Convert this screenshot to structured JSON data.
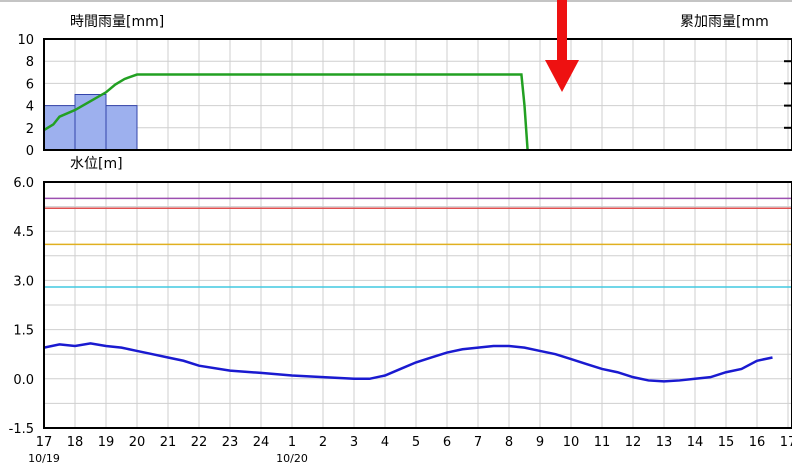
{
  "chart_data": [
    {
      "type": "bar",
      "title_left": "時間雨量[mm]",
      "title_right": "累加雨量[mm",
      "ylim": [
        0,
        10
      ],
      "yticks": [
        0,
        2,
        4,
        6,
        8,
        10
      ],
      "x_start": 17,
      "bars": [
        {
          "x": 17,
          "value": 4
        },
        {
          "x": 18,
          "value": 5
        },
        {
          "x": 19,
          "value": 4
        }
      ],
      "series": [
        {
          "color": "#22a022",
          "x": [
            17,
            17.3,
            17.5,
            18.0,
            18.5,
            19.0,
            19.3,
            19.6,
            20.0,
            20.5,
            21,
            23,
            25,
            27,
            29,
            31,
            32.4,
            32.5,
            32.6
          ],
          "values": [
            1.8,
            2.3,
            3.0,
            3.6,
            4.4,
            5.2,
            5.9,
            6.4,
            6.8,
            6.8,
            6.8,
            6.8,
            6.8,
            6.8,
            6.8,
            6.8,
            6.8,
            4.0,
            0
          ]
        }
      ],
      "bar_color": "#9db0ee"
    },
    {
      "type": "line",
      "ylabel": "水位[m]",
      "ylim": [
        -1.5,
        6.0
      ],
      "yticks": [
        "-1.5",
        "0.0",
        "1.5",
        "3.0",
        "4.5",
        "6.0"
      ],
      "ytick_values": [
        -1.5,
        0.0,
        1.5,
        3.0,
        4.5,
        6.0
      ],
      "xticks": [
        "17",
        "18",
        "19",
        "20",
        "21",
        "22",
        "23",
        "24",
        "1",
        "2",
        "3",
        "4",
        "5",
        "6",
        "7",
        "8",
        "9",
        "10",
        "11",
        "12",
        "13",
        "14",
        "15",
        "16",
        "17"
      ],
      "xtick_values": [
        17,
        18,
        19,
        20,
        21,
        22,
        23,
        24,
        25,
        26,
        27,
        28,
        29,
        30,
        31,
        32,
        33,
        34,
        35,
        36,
        37,
        38,
        39,
        40,
        41
      ],
      "date_labels": [
        {
          "text": "10/19",
          "x": 17
        },
        {
          "text": "10/20",
          "x": 25
        }
      ],
      "threshold_lines": [
        {
          "value": 5.5,
          "color": "#9c4fb0"
        },
        {
          "value": 5.2,
          "color": "#e05050"
        },
        {
          "value": 4.1,
          "color": "#e0b020"
        },
        {
          "value": 2.8,
          "color": "#40c8e0"
        }
      ],
      "series": [
        {
          "color": "#1a1ad0",
          "x": [
            17,
            17.5,
            18,
            18.5,
            19,
            19.5,
            20,
            20.5,
            21,
            21.5,
            22,
            23,
            24,
            25,
            26,
            27,
            27.5,
            28,
            28.5,
            29,
            29.5,
            30,
            30.5,
            31,
            31.5,
            32,
            32.5,
            33,
            33.5,
            34,
            34.5,
            35,
            35.5,
            36,
            36.5,
            37,
            37.5,
            38,
            38.5,
            39,
            39.5,
            40,
            40.5
          ],
          "values": [
            0.95,
            1.05,
            1.0,
            1.08,
            1.0,
            0.95,
            0.85,
            0.75,
            0.65,
            0.55,
            0.4,
            0.25,
            0.18,
            0.1,
            0.05,
            0.0,
            0.0,
            0.1,
            0.3,
            0.5,
            0.65,
            0.8,
            0.9,
            0.95,
            1.0,
            1.0,
            0.95,
            0.85,
            0.75,
            0.6,
            0.45,
            0.3,
            0.2,
            0.05,
            -0.05,
            -0.08,
            -0.05,
            0.0,
            0.05,
            0.2,
            0.3,
            0.55,
            0.65
          ]
        }
      ]
    }
  ],
  "annotation": {
    "arrow_color": "#ee1111"
  }
}
